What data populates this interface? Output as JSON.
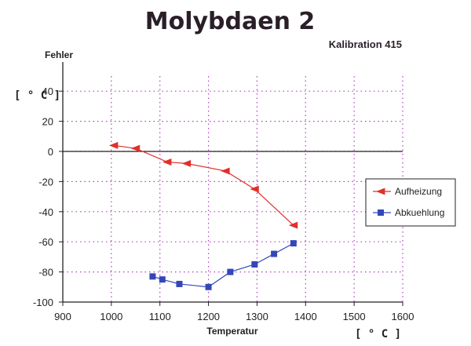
{
  "chart_data": {
    "type": "line",
    "title": "Molybdaen 2",
    "subtitle": "Kalibration 415",
    "xlabel": "Temperatur",
    "ylabel": "Fehler",
    "yunit": "[ ° C ]",
    "xunit": "[ ° C ]",
    "xlim": [
      900,
      1600
    ],
    "ylim": [
      -100,
      50
    ],
    "xticks": [
      900,
      1000,
      1100,
      1200,
      1300,
      1400,
      1500,
      1600
    ],
    "yticks": [
      -100,
      -80,
      -60,
      -40,
      -20,
      0,
      20,
      40
    ],
    "grid": true,
    "legend_position": "right",
    "series": [
      {
        "name": "Aufheizung",
        "color": "#e0302a",
        "marker": "triangle-left",
        "x": [
          1005,
          1050,
          1115,
          1155,
          1235,
          1295,
          1375
        ],
        "y": [
          4,
          2,
          -7,
          -8,
          -13,
          -25,
          -49
        ]
      },
      {
        "name": "Abkuehlung",
        "color": "#3347b8",
        "marker": "square",
        "x": [
          1085,
          1105,
          1140,
          1200,
          1245,
          1295,
          1335,
          1375
        ],
        "y": [
          -83,
          -85,
          -88,
          -90,
          -80,
          -75,
          -68,
          -61
        ]
      }
    ]
  }
}
